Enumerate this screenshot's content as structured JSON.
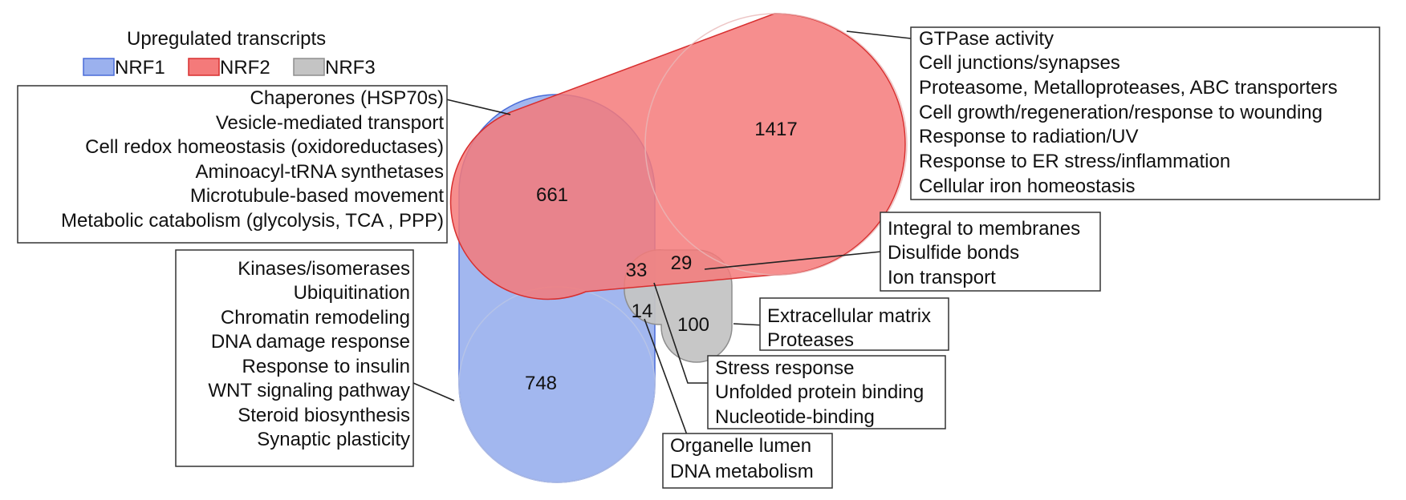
{
  "legend": {
    "title": "Upregulated transcripts",
    "items": [
      {
        "label": "NRF1",
        "color": "#9bb1ee",
        "border": "#4a6cd8"
      },
      {
        "label": "NRF2",
        "color": "#f47a7a",
        "border": "#d82f2f"
      },
      {
        "label": "NRF3",
        "color": "#c4c4c4",
        "border": "#8e8e8e"
      }
    ]
  },
  "regions": {
    "nrf2_only": "1417",
    "nrf1_nrf2": "661",
    "nrf1_only": "748",
    "all_three": "33",
    "nrf2_nrf3": "29",
    "nrf1_nrf3": "14",
    "nrf3_only": "100"
  },
  "annotations": {
    "nrf2_only": [
      "GTPase activity",
      "Cell junctions/synapses",
      "Proteasome, Metalloproteases, ABC transporters",
      "Cell growth/regeneration/response to wounding",
      "Response to radiation/UV",
      "Response to ER stress/inflammation",
      "Cellular iron homeostasis"
    ],
    "nrf1_nrf2": [
      "Chaperones (HSP70s)",
      "Vesicle-mediated transport",
      "Cell redox homeostasis (oxidoreductases)",
      "Aminoacyl-tRNA synthetases",
      "Microtubule-based movement",
      "Metabolic catabolism (glycolysis, TCA , PPP)"
    ],
    "nrf1_only": [
      "Kinases/isomerases",
      "Ubiquitination",
      "Chromatin remodeling",
      "DNA damage response",
      "Response to insulin",
      "WNT signaling pathway",
      "Steroid biosynthesis",
      "Synaptic plasticity"
    ],
    "nrf2_nrf3": [
      "Integral to membranes",
      "Disulfide bonds",
      "Ion transport"
    ],
    "nrf3_only": [
      "Extracellular matrix",
      "Proteases"
    ],
    "all_three": [
      "Stress response",
      "Unfolded protein binding",
      "Nucleotide-binding"
    ],
    "nrf1_nrf3": [
      "Organelle lumen",
      "DNA metabolism"
    ]
  }
}
